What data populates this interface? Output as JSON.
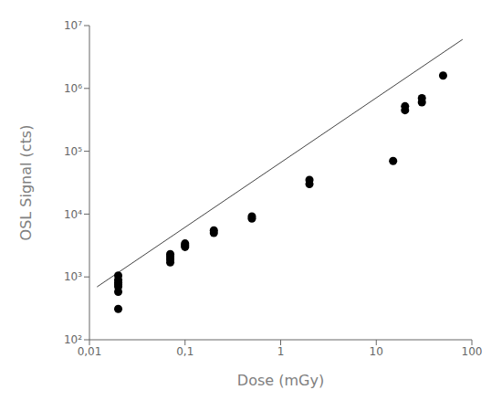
{
  "chart_data": {
    "type": "scatter",
    "xlabel": "Dose (mGy)",
    "ylabel": "OSL Signal (cts)",
    "log": true,
    "grid": false,
    "xlim": [
      0.01,
      100
    ],
    "ylim": [
      100,
      10000000.0
    ],
    "xticks": [
      {
        "value": 0.01,
        "label": "0,01"
      },
      {
        "value": 0.1,
        "label": "0,1"
      },
      1,
      10,
      100
    ],
    "yticks": [
      {
        "value": 100,
        "label": "10²"
      },
      {
        "value": 1000,
        "label": "10³"
      },
      {
        "value": 10000,
        "label": "10⁴"
      },
      {
        "value": 100000,
        "label": "10⁵"
      },
      {
        "value": 1000000,
        "label": "10⁶"
      },
      {
        "value": 10000000,
        "label": "10⁷"
      }
    ],
    "series": [
      {
        "type": "line",
        "color": "#444444",
        "x": [
          0.012,
          80
        ],
        "values": [
          694.32,
          6028130
        ]
      },
      {
        "type": "scatter",
        "color": "black",
        "marker": "circle",
        "x": [
          0.02,
          0.02,
          0.02,
          0.02,
          0.02,
          0.02,
          0.02,
          0.07,
          0.07,
          0.07,
          0.07,
          0.1,
          0.1,
          0.1,
          0.2,
          0.2,
          0.5,
          0.5,
          2.0,
          2.0,
          15.0,
          20.0,
          20.0,
          30.0,
          30.0,
          50.0
        ],
        "values": [
          310,
          580,
          700,
          760,
          820,
          900,
          1050,
          1700,
          1900,
          2100,
          2300,
          3000,
          3200,
          3400,
          5000,
          5500,
          8500,
          9200,
          30000,
          35000,
          70000,
          450000,
          520000,
          600000,
          700000,
          1600000
        ]
      }
    ]
  }
}
